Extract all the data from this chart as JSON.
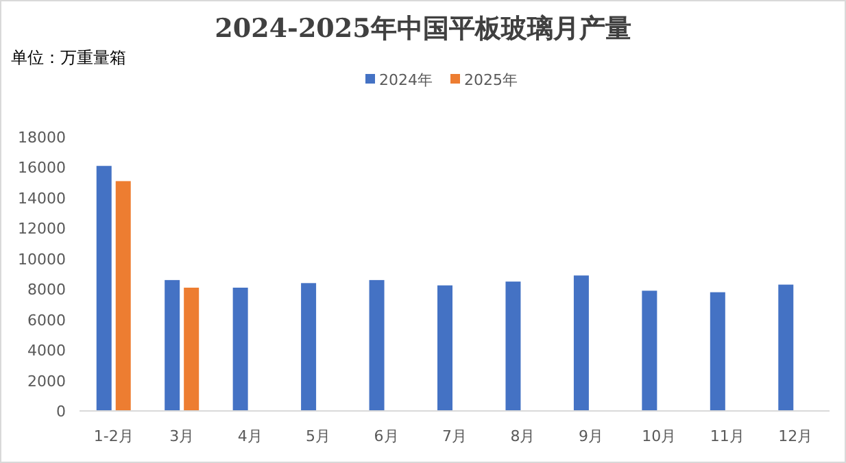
{
  "chart_data": {
    "type": "bar",
    "title": "2024-2025年中国平板玻璃月产量",
    "ylabel": "单位：万重量箱",
    "categories": [
      "1-2月",
      "3月",
      "4月",
      "5月",
      "6月",
      "7月",
      "8月",
      "9月",
      "10月",
      "11月",
      "12月"
    ],
    "series": [
      {
        "name": "2024年",
        "color": "#4472c4",
        "values": [
          16100,
          8600,
          8100,
          8400,
          8600,
          8250,
          8500,
          8900,
          7900,
          7800,
          8300
        ]
      },
      {
        "name": "2025年",
        "color": "#ed7d31",
        "values": [
          15100,
          8100,
          null,
          null,
          null,
          null,
          null,
          null,
          null,
          null,
          null
        ]
      }
    ],
    "ylim": [
      0,
      18000
    ],
    "yticks": [
      0,
      2000,
      4000,
      6000,
      8000,
      10000,
      12000,
      14000,
      16000,
      18000
    ],
    "grid": false,
    "legend": "top"
  }
}
